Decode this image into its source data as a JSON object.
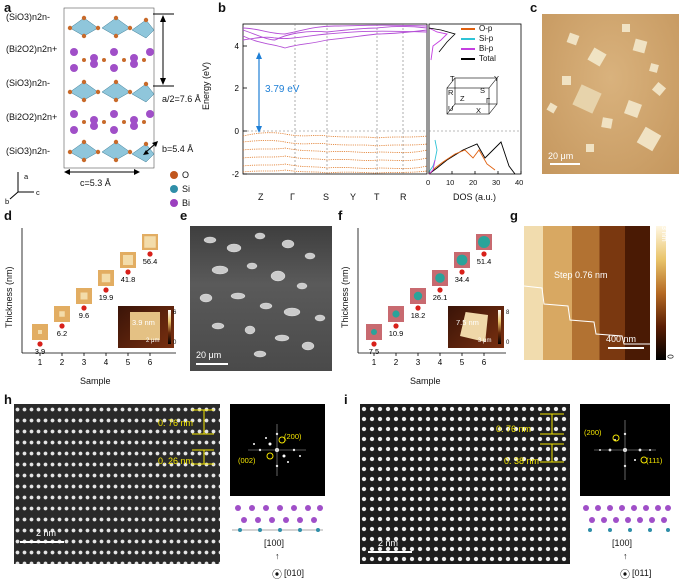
{
  "panel_letters": [
    "a",
    "b",
    "c",
    "d",
    "e",
    "f",
    "g",
    "h",
    "i"
  ],
  "panel_a": {
    "layers": [
      "(SiO3)n2n-",
      "(Bi2O2)n2n+",
      "(SiO3)n2n-",
      "(Bi2O2)n2n+",
      "(SiO3)n2n-"
    ],
    "half_a": "a/2=7.6 Å",
    "b_len": "b=5.4 Å",
    "c_len": "c=5.3 Å",
    "axes": [
      "b",
      "a",
      "c"
    ],
    "legend": [
      {
        "label": "O",
        "color": "#c0561e"
      },
      {
        "label": "Si",
        "color": "#2f8ea8"
      },
      {
        "label": "Bi",
        "color": "#9b3fbf"
      }
    ]
  },
  "panel_b": {
    "ylabel": "Energy (eV)",
    "kpoints": [
      "Z",
      "Γ",
      "S",
      "Y",
      "T",
      "R"
    ],
    "gap": "3.79 eV",
    "dos_xlabel": "DOS (a.u.)",
    "dos_ticks": [
      "0",
      "10",
      "20",
      "30",
      "40"
    ],
    "legend": [
      {
        "label": "O-p",
        "color": "#e0600f"
      },
      {
        "label": "Si-p",
        "color": "#2fc3d6"
      },
      {
        "label": "Bi-p",
        "color": "#c43fe0"
      },
      {
        "label": "Total",
        "color": "#000000"
      }
    ],
    "bz_labels": [
      "T",
      "Y",
      "R",
      "S",
      "Z",
      "Γ",
      "U",
      "X"
    ]
  },
  "chart_data": [
    {
      "type": "line",
      "title": "",
      "xlabel": "",
      "ylabel": "Energy (eV)",
      "ylim": [
        -2,
        5
      ],
      "yticks": [
        -2,
        0,
        2,
        4
      ],
      "x": [
        "Z",
        "Γ",
        "S",
        "Y",
        "T",
        "R"
      ],
      "annotations": [
        "3.79 eV"
      ]
    },
    {
      "type": "scatter",
      "xlabel": "Sample",
      "ylabel": "Thickness (nm)",
      "x": [
        1,
        2,
        3,
        4,
        5,
        6
      ],
      "values": [
        3.9,
        6.2,
        9.6,
        19.9,
        41.8,
        56.4
      ]
    },
    {
      "type": "scatter",
      "xlabel": "Sample",
      "ylabel": "Thickness (nm)",
      "x": [
        1,
        2,
        3,
        4,
        5,
        6
      ],
      "values": [
        7.5,
        10.9,
        18.2,
        26.1,
        34.4,
        51.4
      ]
    }
  ],
  "panel_c": {
    "scale": "20 μm"
  },
  "panel_d": {
    "ylabel": "Thickness (nm)",
    "xlabel": "Sample",
    "xticks": [
      "1",
      "2",
      "3",
      "4",
      "5",
      "6"
    ],
    "values": [
      "3.9",
      "6.2",
      "9.6",
      "19.9",
      "41.8",
      "56.4"
    ],
    "inset_height": "3.9 nm",
    "inset_scale": "2 μm",
    "inset_cb": [
      "6",
      "0"
    ]
  },
  "panel_e": {
    "scale": "20 μm"
  },
  "panel_f": {
    "ylabel": "Thickness (nm)",
    "xlabel": "Sample",
    "xticks": [
      "1",
      "2",
      "3",
      "4",
      "5",
      "6"
    ],
    "values": [
      "7.5",
      "10.9",
      "18.2",
      "26.1",
      "34.4",
      "51.4"
    ],
    "inset_height": "7.5 nm",
    "inset_scale": "3 μm",
    "inset_cb": [
      "8",
      "0"
    ]
  },
  "panel_g": {
    "step": "Step 0.76 nm",
    "scale": "400 nm",
    "cb": [
      "3 nm",
      "0"
    ]
  },
  "panel_h": {
    "d1": "0. 76 nm",
    "d2": "0. 26 nm",
    "scale": "2 nm",
    "fft": [
      "(200)",
      "(002)"
    ],
    "dir_top": "[100]",
    "dir_zone": "[010]"
  },
  "panel_i": {
    "d1": "0. 76 nm",
    "d2": "0. 38 nm",
    "scale": "2 nm",
    "fft": [
      "(200)",
      "(111)"
    ],
    "dir_top": "[100]",
    "dir_zone": "[011]"
  }
}
